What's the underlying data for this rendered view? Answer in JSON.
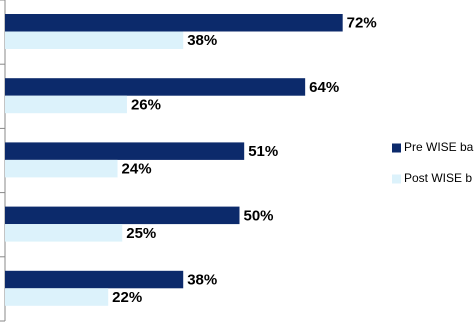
{
  "chart_data": {
    "type": "barh",
    "categories": [
      null,
      null,
      null,
      null,
      null
    ],
    "series": [
      {
        "name": "Pre WISE ba",
        "color": "#0c2a6b",
        "values": [
          72,
          64,
          51,
          50,
          38
        ],
        "value_labels": [
          "72%",
          "64%",
          "51%",
          "50%",
          "38%"
        ]
      },
      {
        "name": "Post WISE b",
        "color": "#dcf2fb",
        "values": [
          38,
          26,
          24,
          25,
          22
        ],
        "value_labels": [
          "38%",
          "26%",
          "24%",
          "25%",
          "22%"
        ]
      }
    ],
    "xlim": [
      0,
      100
    ],
    "legend": "right"
  }
}
